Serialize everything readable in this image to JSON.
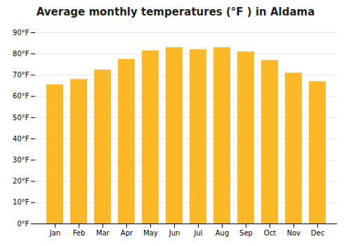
{
  "chart_data": {
    "type": "bar",
    "title": "Average monthly temperatures (°F ) in Aldama",
    "categories": [
      "Jan",
      "Feb",
      "Mar",
      "Apr",
      "May",
      "Jun",
      "Jul",
      "Aug",
      "Sep",
      "Oct",
      "Nov",
      "Dec"
    ],
    "values": [
      65.5,
      68,
      72.5,
      77.5,
      81.5,
      83,
      82,
      83,
      81,
      77,
      71,
      67
    ],
    "color": "#FDB827",
    "ylim": [
      0,
      90
    ],
    "yticks": [
      {
        "value": 0,
        "label": "0°F"
      },
      {
        "value": 10,
        "label": "10°F"
      },
      {
        "value": 20,
        "label": "20°F"
      },
      {
        "value": 30,
        "label": "30°F"
      },
      {
        "value": 40,
        "label": "40°F"
      },
      {
        "value": 50,
        "label": "50°F"
      },
      {
        "value": 60,
        "label": "60°F"
      },
      {
        "value": 70,
        "label": "70°F"
      },
      {
        "value": 80,
        "label": "80°F"
      },
      {
        "value": 90,
        "label": "90°F"
      }
    ],
    "grid": true
  }
}
